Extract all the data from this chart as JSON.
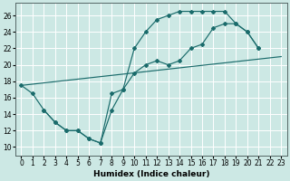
{
  "xlabel": "Humidex (Indice chaleur)",
  "xlim": [
    -0.5,
    23.5
  ],
  "ylim": [
    9.0,
    27.5
  ],
  "yticks": [
    10,
    12,
    14,
    16,
    18,
    20,
    22,
    24,
    26
  ],
  "xticks": [
    0,
    1,
    2,
    3,
    4,
    5,
    6,
    7,
    8,
    9,
    10,
    11,
    12,
    13,
    14,
    15,
    16,
    17,
    18,
    19,
    20,
    21,
    22,
    23
  ],
  "bg_color": "#cce8e4",
  "line_color": "#1a6b6b",
  "grid_color": "#ffffff",
  "curve1_x": [
    0,
    1,
    2,
    3,
    4,
    5,
    6,
    7,
    8,
    9,
    10,
    11,
    12,
    13,
    14,
    15,
    16,
    17,
    18,
    19,
    20,
    21
  ],
  "curve1_y": [
    17.5,
    16.5,
    14.5,
    13.0,
    12.0,
    12.0,
    11.0,
    10.5,
    14.5,
    17.0,
    22.0,
    24.0,
    25.5,
    26.0,
    26.5,
    26.5,
    26.5,
    26.5,
    26.5,
    25.0,
    24.0,
    22.0
  ],
  "curve2_x": [
    0,
    23
  ],
  "curve2_y": [
    17.5,
    21.0
  ],
  "curve3_x": [
    2,
    3,
    4,
    5,
    6,
    7,
    8,
    9,
    10,
    11,
    12,
    13,
    14,
    15,
    16,
    17,
    18,
    19,
    20,
    21
  ],
  "curve3_y": [
    14.5,
    13.0,
    12.0,
    12.0,
    11.0,
    10.5,
    16.5,
    17.0,
    19.0,
    20.0,
    20.5,
    20.0,
    20.5,
    22.0,
    22.5,
    24.5,
    25.0,
    25.0,
    24.0,
    22.0
  ]
}
